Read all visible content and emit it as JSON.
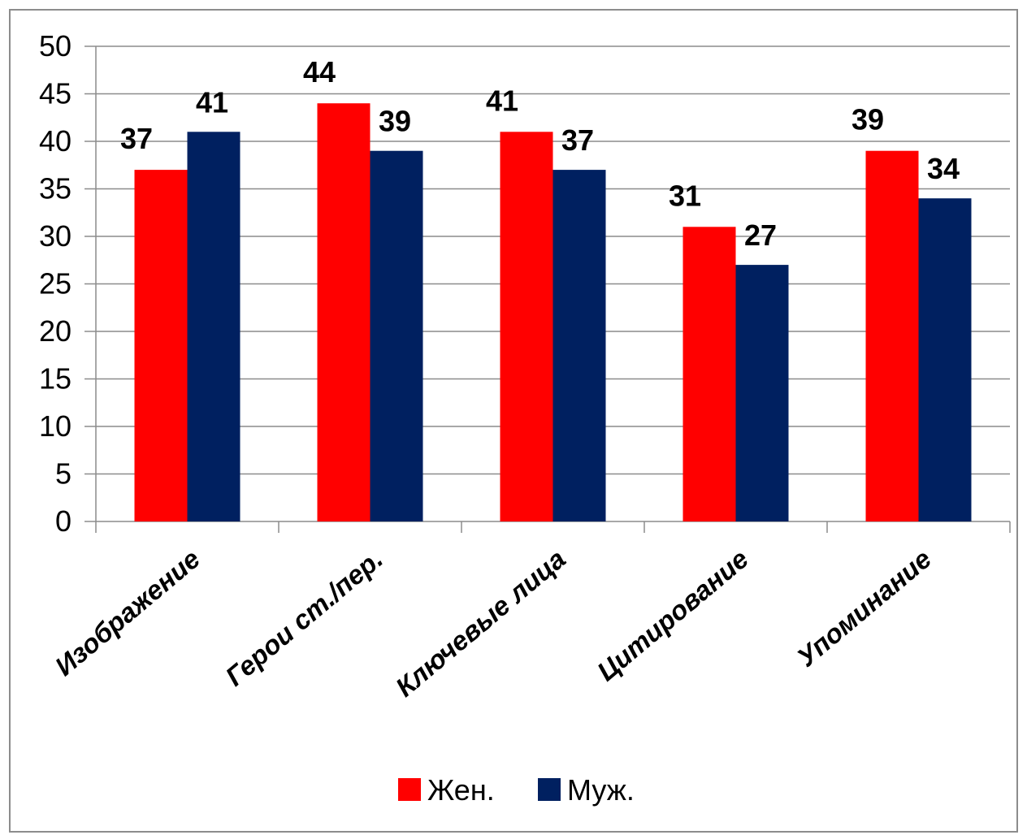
{
  "chart_data": {
    "type": "bar",
    "categories": [
      "Изображение",
      "Герои ст./пер.",
      "Ключевые  лица",
      "Цитирование",
      "Упоминание"
    ],
    "series": [
      {
        "name": "Жен.",
        "color": "#ff0000",
        "values": [
          37,
          44,
          41,
          31,
          39
        ]
      },
      {
        "name": "Муж.",
        "color": "#002060",
        "values": [
          41,
          39,
          37,
          27,
          34
        ]
      }
    ],
    "ylim": [
      0,
      50
    ],
    "yticks": [
      0,
      5,
      10,
      15,
      20,
      25,
      30,
      35,
      40,
      45,
      50
    ],
    "grid": true,
    "legend": "bottom",
    "data_labels": true
  }
}
